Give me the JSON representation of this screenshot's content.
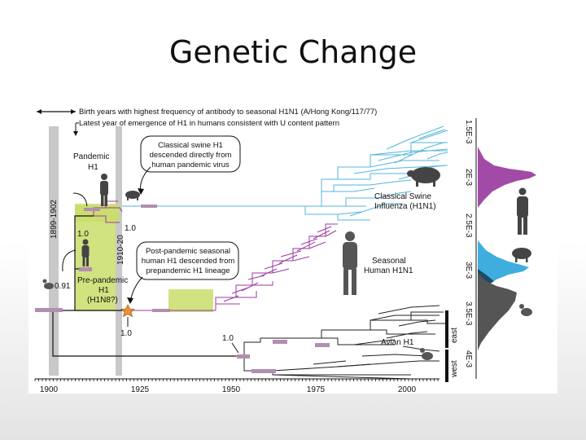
{
  "slide": {
    "title": "Genetic Change"
  },
  "figure": {
    "header": {
      "line1": "Birth years with highest frequency of antibody to seasonal H1N1 (A/Hong Kong/117/77)",
      "line2": "Latest year of emergence of H1 in humans consistent with U content pattern"
    },
    "bands": {
      "band1": "1899-1902",
      "band2": "1910-20"
    },
    "callouts": {
      "classical": [
        "Classical swine H1",
        "descended directly from",
        "human pandemic virus"
      ],
      "postpandemic": [
        "Post-pandemic seasonal",
        "human H1 descended from",
        "prepandemic H1 lineage"
      ]
    },
    "labels": {
      "pandemic": [
        "Pandemic",
        "H1"
      ],
      "prepandemic": [
        "Pre-pandemic",
        "H1",
        "(H1N8?)"
      ],
      "classical_swine": [
        "Classical Swine",
        "Influenza (H1N1)"
      ],
      "seasonal": [
        "Seasonal",
        "Human H1N1"
      ],
      "avian": "Avian H1",
      "east": "east",
      "west": "west"
    },
    "support": {
      "s_swine": "1.0",
      "s_pandemic": "1.0",
      "s_prepandemic": "0.91",
      "s_seasonal": "1.0",
      "s_avian": "1.0"
    },
    "x_axis": {
      "ticks": [
        "1900",
        "1925",
        "1950",
        "1975",
        "2000"
      ]
    },
    "rate_axis": {
      "ticks": [
        "1.5E-3",
        "2E-3",
        "2.5E-3",
        "3E-3",
        "3.5E-3",
        "4E-3"
      ]
    },
    "colors": {
      "swine": "#55b6dd",
      "seasonal": "#9a3ba0",
      "avian": "#222222",
      "prepandemic_box": "#c9dd6a",
      "band": "#c8c8c8",
      "star": "#e8903a"
    }
  }
}
